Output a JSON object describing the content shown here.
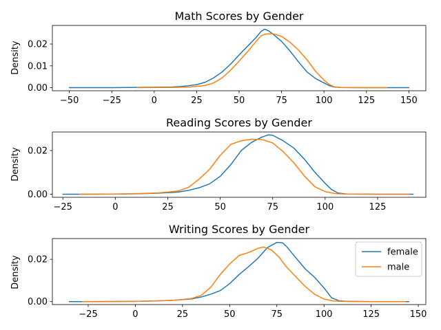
{
  "chart_data": [
    {
      "type": "line",
      "title": "Math Scores by Gender",
      "xlabel": "",
      "ylabel": "Density",
      "xlim": [
        -60,
        160
      ],
      "ylim": [
        -0.0014,
        0.0285
      ],
      "xticks": [
        -50,
        -25,
        0,
        25,
        50,
        75,
        100,
        125,
        150
      ],
      "yticks": [
        0.0,
        0.01,
        0.02
      ],
      "ytick_labels": [
        "0.00",
        "0.01",
        "0.02"
      ],
      "legend": null,
      "series": [
        {
          "name": "female",
          "color": "#1f77b4",
          "points": [
            [
              -50,
              0
            ],
            [
              -25,
              0
            ],
            [
              0,
              0.0002
            ],
            [
              10,
              0.0003
            ],
            [
              15,
              0.0005
            ],
            [
              20,
              0.0009
            ],
            [
              25,
              0.0014
            ],
            [
              30,
              0.0025
            ],
            [
              35,
              0.0045
            ],
            [
              40,
              0.0072
            ],
            [
              45,
              0.0108
            ],
            [
              50,
              0.015
            ],
            [
              55,
              0.019
            ],
            [
              60,
              0.023
            ],
            [
              63,
              0.0258
            ],
            [
              65,
              0.0268
            ],
            [
              67,
              0.0262
            ],
            [
              70,
              0.0245
            ],
            [
              75,
              0.0212
            ],
            [
              80,
              0.0168
            ],
            [
              85,
              0.0118
            ],
            [
              90,
              0.0072
            ],
            [
              95,
              0.0042
            ],
            [
              100,
              0.0022
            ],
            [
              103,
              0.001
            ],
            [
              106,
              0.0003
            ],
            [
              110,
              0.0001
            ],
            [
              125,
              0
            ],
            [
              150,
              0
            ]
          ]
        },
        {
          "name": "male",
          "color": "#ff7f0e",
          "points": [
            [
              -10,
              0
            ],
            [
              0,
              0.0001
            ],
            [
              10,
              0.0001
            ],
            [
              20,
              0.0003
            ],
            [
              25,
              0.0006
            ],
            [
              30,
              0.001
            ],
            [
              35,
              0.0022
            ],
            [
              40,
              0.0045
            ],
            [
              45,
              0.008
            ],
            [
              50,
              0.0122
            ],
            [
              55,
              0.0165
            ],
            [
              60,
              0.0212
            ],
            [
              63,
              0.0238
            ],
            [
              66,
              0.0246
            ],
            [
              70,
              0.0247
            ],
            [
              75,
              0.0235
            ],
            [
              80,
              0.0208
            ],
            [
              85,
              0.0172
            ],
            [
              90,
              0.0128
            ],
            [
              95,
              0.0075
            ],
            [
              100,
              0.0035
            ],
            [
              103,
              0.0015
            ],
            [
              106,
              0.0004
            ],
            [
              110,
              0.0001
            ],
            [
              120,
              0
            ],
            [
              137,
              0
            ]
          ]
        }
      ]
    },
    {
      "type": "line",
      "title": "Reading Scores by Gender",
      "xlabel": "",
      "ylabel": "Density",
      "xlim": [
        -30,
        148
      ],
      "ylim": [
        -0.0014,
        0.0285
      ],
      "xticks": [
        -25,
        0,
        25,
        50,
        75,
        100,
        125
      ],
      "yticks": [
        0.0,
        0.02
      ],
      "ytick_labels": [
        "0.00",
        "0.02"
      ],
      "legend": null,
      "series": [
        {
          "name": "female",
          "color": "#1f77b4",
          "points": [
            [
              -25,
              0
            ],
            [
              -15,
              0
            ],
            [
              0,
              0.0001
            ],
            [
              10,
              0.0002
            ],
            [
              20,
              0.0005
            ],
            [
              30,
              0.001
            ],
            [
              35,
              0.0018
            ],
            [
              40,
              0.003
            ],
            [
              45,
              0.0048
            ],
            [
              50,
              0.0082
            ],
            [
              55,
              0.0135
            ],
            [
              60,
              0.02
            ],
            [
              65,
              0.0238
            ],
            [
              70,
              0.0262
            ],
            [
              73,
              0.0272
            ],
            [
              75,
              0.027
            ],
            [
              80,
              0.0245
            ],
            [
              85,
              0.0212
            ],
            [
              90,
              0.0162
            ],
            [
              95,
              0.0102
            ],
            [
              100,
              0.005
            ],
            [
              103,
              0.0022
            ],
            [
              106,
              0.0006
            ],
            [
              110,
              0.0001
            ],
            [
              125,
              0
            ],
            [
              142,
              0
            ]
          ]
        },
        {
          "name": "male",
          "color": "#ff7f0e",
          "points": [
            [
              -17,
              0
            ],
            [
              0,
              0.0001
            ],
            [
              10,
              0.0003
            ],
            [
              20,
              0.0006
            ],
            [
              25,
              0.001
            ],
            [
              30,
              0.0015
            ],
            [
              35,
              0.0032
            ],
            [
              40,
              0.007
            ],
            [
              45,
              0.0115
            ],
            [
              50,
              0.0178
            ],
            [
              55,
              0.0228
            ],
            [
              60,
              0.0245
            ],
            [
              65,
              0.0252
            ],
            [
              70,
              0.025
            ],
            [
              75,
              0.0235
            ],
            [
              80,
              0.0195
            ],
            [
              85,
              0.0145
            ],
            [
              90,
              0.0085
            ],
            [
              95,
              0.0035
            ],
            [
              100,
              0.0012
            ],
            [
              105,
              0.0003
            ],
            [
              110,
              0.0001
            ],
            [
              125,
              0
            ],
            [
              140,
              0
            ]
          ]
        }
      ]
    },
    {
      "type": "line",
      "title": "Writing Scores by Gender",
      "xlabel": "",
      "ylabel": "Density",
      "xlim": [
        -44,
        154
      ],
      "ylim": [
        -0.0014,
        0.0298
      ],
      "xticks": [
        -25,
        0,
        25,
        50,
        75,
        100,
        125,
        150
      ],
      "yticks": [
        0.0,
        0.02
      ],
      "ytick_labels": [
        "0.00",
        "0.02"
      ],
      "legend": {
        "position": "top-right",
        "entries": [
          "female",
          "male"
        ]
      },
      "series": [
        {
          "name": "female",
          "color": "#1f77b4",
          "points": [
            [
              -35,
              0
            ],
            [
              -20,
              0
            ],
            [
              0,
              0.0001
            ],
            [
              10,
              0.0003
            ],
            [
              20,
              0.0006
            ],
            [
              30,
              0.0013
            ],
            [
              35,
              0.0022
            ],
            [
              40,
              0.0035
            ],
            [
              45,
              0.0052
            ],
            [
              50,
              0.0085
            ],
            [
              55,
              0.0128
            ],
            [
              60,
              0.0165
            ],
            [
              65,
              0.0205
            ],
            [
              70,
              0.0255
            ],
            [
              75,
              0.028
            ],
            [
              78,
              0.0278
            ],
            [
              80,
              0.0262
            ],
            [
              85,
              0.0208
            ],
            [
              90,
              0.0155
            ],
            [
              95,
              0.0115
            ],
            [
              100,
              0.0065
            ],
            [
              104,
              0.0018
            ],
            [
              108,
              0.0004
            ],
            [
              112,
              0.0001
            ],
            [
              125,
              0
            ],
            [
              145,
              0
            ]
          ]
        },
        {
          "name": "male",
          "color": "#ff7f0e",
          "points": [
            [
              -28,
              0
            ],
            [
              0,
              0.0001
            ],
            [
              10,
              0.0003
            ],
            [
              20,
              0.0006
            ],
            [
              25,
              0.001
            ],
            [
              30,
              0.0015
            ],
            [
              35,
              0.003
            ],
            [
              40,
              0.0068
            ],
            [
              45,
              0.0128
            ],
            [
              50,
              0.0178
            ],
            [
              55,
              0.0218
            ],
            [
              60,
              0.0232
            ],
            [
              65,
              0.0252
            ],
            [
              68,
              0.0258
            ],
            [
              72,
              0.0245
            ],
            [
              76,
              0.0212
            ],
            [
              80,
              0.0165
            ],
            [
              85,
              0.0118
            ],
            [
              90,
              0.0072
            ],
            [
              95,
              0.0035
            ],
            [
              100,
              0.0012
            ],
            [
              105,
              0.0003
            ],
            [
              110,
              0.0001
            ],
            [
              125,
              0
            ],
            [
              143,
              0
            ]
          ]
        }
      ]
    }
  ]
}
